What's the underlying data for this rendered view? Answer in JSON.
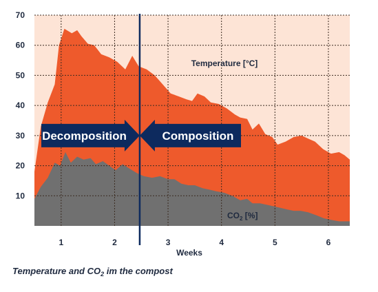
{
  "chart_data": {
    "type": "area",
    "xlabel": "Weeks",
    "ylabel": "",
    "xlim": [
      0.5,
      6.4
    ],
    "ylim": [
      0,
      70
    ],
    "x_ticks": [
      1,
      2,
      3,
      4,
      5,
      6
    ],
    "y_ticks": [
      10,
      20,
      30,
      40,
      50,
      60,
      70
    ],
    "grid": true,
    "series": [
      {
        "name": "Temperature [°C]",
        "color": "#ee5a2c",
        "points": [
          [
            0.5,
            18
          ],
          [
            0.62,
            33
          ],
          [
            0.75,
            41
          ],
          [
            0.88,
            47
          ],
          [
            0.96,
            60
          ],
          [
            1.06,
            65.5
          ],
          [
            1.2,
            64
          ],
          [
            1.3,
            65
          ],
          [
            1.38,
            63
          ],
          [
            1.5,
            60.5
          ],
          [
            1.62,
            60
          ],
          [
            1.75,
            57
          ],
          [
            1.9,
            56
          ],
          [
            2.05,
            54.5
          ],
          [
            2.2,
            52
          ],
          [
            2.33,
            56.5
          ],
          [
            2.45,
            53
          ],
          [
            2.6,
            52
          ],
          [
            2.75,
            50
          ],
          [
            2.9,
            47
          ],
          [
            3.05,
            44
          ],
          [
            3.2,
            43
          ],
          [
            3.35,
            42
          ],
          [
            3.45,
            41.5
          ],
          [
            3.55,
            44
          ],
          [
            3.68,
            43
          ],
          [
            3.8,
            41
          ],
          [
            3.95,
            40.5
          ],
          [
            4.1,
            39
          ],
          [
            4.25,
            37
          ],
          [
            4.35,
            36
          ],
          [
            4.48,
            35.5
          ],
          [
            4.58,
            32
          ],
          [
            4.7,
            34
          ],
          [
            4.82,
            30.5
          ],
          [
            4.95,
            29.5
          ],
          [
            5.05,
            27
          ],
          [
            5.2,
            28
          ],
          [
            5.35,
            29.5
          ],
          [
            5.5,
            30
          ],
          [
            5.62,
            29
          ],
          [
            5.75,
            28
          ],
          [
            5.9,
            25.5
          ],
          [
            6.05,
            24
          ],
          [
            6.2,
            24.5
          ],
          [
            6.3,
            23.5
          ],
          [
            6.4,
            22
          ]
        ]
      },
      {
        "name": "CO2 [%]",
        "color": "#707070",
        "points": [
          [
            0.5,
            9
          ],
          [
            0.62,
            13
          ],
          [
            0.75,
            16
          ],
          [
            0.88,
            21
          ],
          [
            0.98,
            20
          ],
          [
            1.08,
            24.5
          ],
          [
            1.18,
            21
          ],
          [
            1.3,
            23
          ],
          [
            1.42,
            22
          ],
          [
            1.55,
            22.5
          ],
          [
            1.65,
            20.5
          ],
          [
            1.78,
            21.5
          ],
          [
            1.9,
            20
          ],
          [
            2.02,
            18.5
          ],
          [
            2.15,
            20.5
          ],
          [
            2.28,
            19
          ],
          [
            2.42,
            17.5
          ],
          [
            2.55,
            16.5
          ],
          [
            2.7,
            16
          ],
          [
            2.85,
            16.5
          ],
          [
            3.0,
            15.5
          ],
          [
            3.12,
            15.5
          ],
          [
            3.25,
            14
          ],
          [
            3.38,
            13.5
          ],
          [
            3.5,
            13.5
          ],
          [
            3.65,
            12.5
          ],
          [
            3.78,
            12
          ],
          [
            3.9,
            11.5
          ],
          [
            4.05,
            11
          ],
          [
            4.2,
            10
          ],
          [
            4.35,
            8.5
          ],
          [
            4.48,
            9
          ],
          [
            4.58,
            7.5
          ],
          [
            4.72,
            7.5
          ],
          [
            4.85,
            7
          ],
          [
            4.98,
            6.5
          ],
          [
            5.1,
            6
          ],
          [
            5.22,
            5.5
          ],
          [
            5.35,
            5
          ],
          [
            5.48,
            5
          ],
          [
            5.62,
            4.5
          ],
          [
            5.78,
            3.5
          ],
          [
            5.92,
            2.5
          ],
          [
            6.05,
            2
          ],
          [
            6.2,
            1.5
          ],
          [
            6.4,
            1.5
          ]
        ]
      }
    ],
    "annotations": {
      "temperature_label": "Temperature [°C]",
      "co2_label_main": "CO",
      "co2_label_sub": "2",
      "co2_label_tail": " [%]",
      "divider_x": 2.47,
      "left_arrow_text": "Decomposition",
      "right_arrow_text": "Composition",
      "arrow_y": 30
    },
    "caption_main": "Temperature and CO",
    "caption_sub": "2",
    "caption_tail": " im the compost",
    "colors": {
      "background": "#fde4d6",
      "temperature": "#ee5a2c",
      "co2": "#707070",
      "arrow": "#0d2a5e",
      "divider": "#0d2a5e",
      "text": "#1f2a3f"
    }
  }
}
